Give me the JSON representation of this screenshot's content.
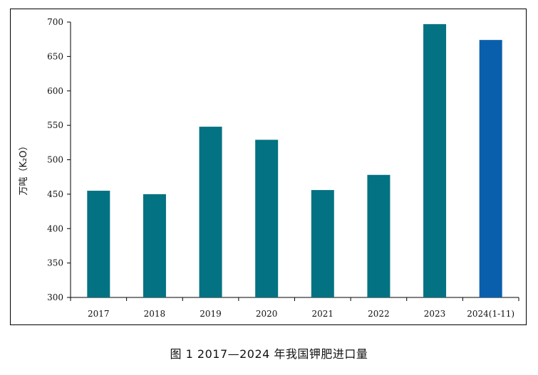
{
  "caption": "图 1  2017—2024 年我国钾肥进口量",
  "chart_data": {
    "type": "bar",
    "categories": [
      "2017",
      "2018",
      "2019",
      "2020",
      "2021",
      "2022",
      "2023",
      "2024(1-11)"
    ],
    "values": [
      455,
      450,
      548,
      529,
      456,
      478,
      697,
      674
    ],
    "ylabel": "万吨（K₂O）",
    "ylim": [
      300,
      700
    ],
    "yticks": [
      300,
      350,
      400,
      450,
      500,
      550,
      600,
      650,
      700
    ],
    "grid": false,
    "legend": "none",
    "colors": {
      "default_bar": "#037282",
      "highlight_bar": "#0a5fac",
      "highlight_index": 7
    }
  }
}
